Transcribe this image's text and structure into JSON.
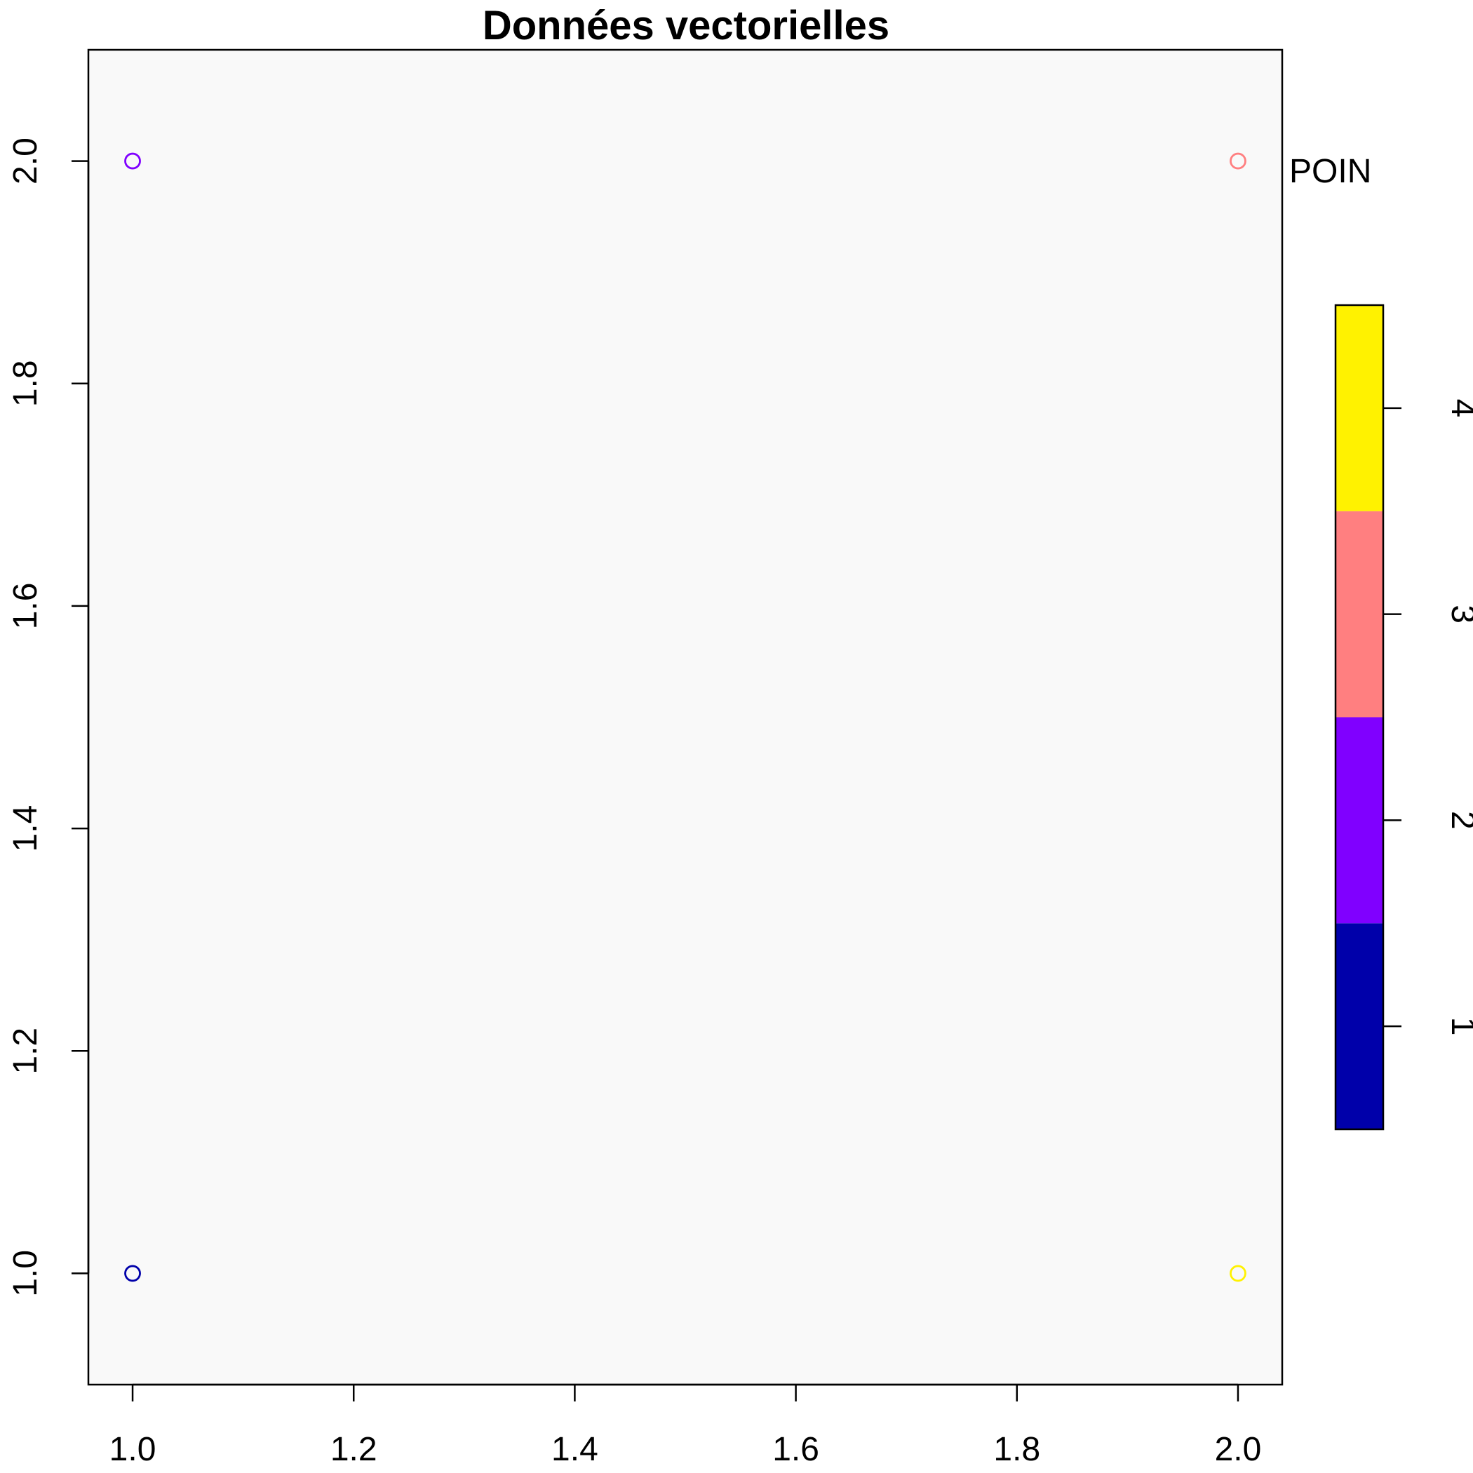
{
  "chart_data": {
    "type": "scatter",
    "title": "Données vectorielles",
    "xlabel": "",
    "ylabel": "",
    "xlim": [
      0.96,
      2.04
    ],
    "ylim": [
      0.9,
      2.1
    ],
    "x_ticks": [
      1.0,
      1.2,
      1.4,
      1.6,
      1.8,
      2.0
    ],
    "x_tick_labels": [
      "1.0",
      "1.2",
      "1.4",
      "1.6",
      "1.8",
      "2.0"
    ],
    "y_ticks": [
      1.0,
      1.2,
      1.4,
      1.6,
      1.8,
      2.0
    ],
    "y_tick_labels": [
      "1.0",
      "1.2",
      "1.4",
      "1.6",
      "1.8",
      "2.0"
    ],
    "grid": false,
    "plot_background": "#f9f9f9",
    "points": [
      {
        "x": 1.0,
        "y": 1.0,
        "value": 1,
        "color": "#0000aa"
      },
      {
        "x": 1.0,
        "y": 2.0,
        "value": 2,
        "color": "#8000ff"
      },
      {
        "x": 2.0,
        "y": 2.0,
        "value": 3,
        "color": "#ff7f80"
      },
      {
        "x": 2.0,
        "y": 1.0,
        "value": 4,
        "color": "#fff200"
      }
    ],
    "legend": {
      "type": "colorbar",
      "placement": "right",
      "heading_text_fragment": "POIN",
      "range": [
        0.5,
        4.5
      ],
      "ticks": [
        1,
        2,
        3,
        4
      ],
      "tick_labels": [
        "1",
        "2",
        "3",
        "4"
      ],
      "bins": [
        {
          "from": 0.5,
          "to": 1.5,
          "color": "#0000aa"
        },
        {
          "from": 1.5,
          "to": 2.5,
          "color": "#8000ff"
        },
        {
          "from": 2.5,
          "to": 3.5,
          "color": "#ff7f80"
        },
        {
          "from": 3.5,
          "to": 4.5,
          "color": "#fff200"
        }
      ]
    }
  }
}
